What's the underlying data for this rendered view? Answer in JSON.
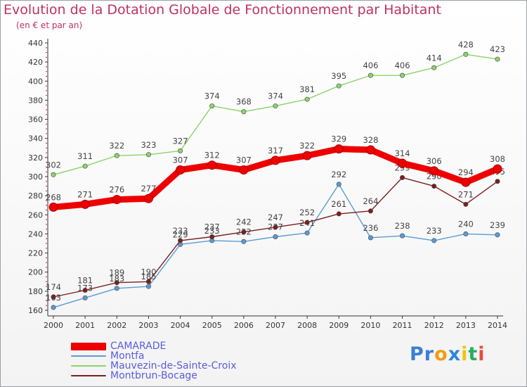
{
  "chart_data": {
    "type": "line",
    "title": "Evolution de la Dotation Globale de Fonctionnement par Habitant",
    "subtitle": "(en € et par an)",
    "xlabel": "",
    "ylabel": "",
    "ylim": [
      160,
      440
    ],
    "yticks": [
      "160",
      "180",
      "200",
      "220",
      "240",
      "260",
      "280",
      "300",
      "320",
      "340",
      "360",
      "380",
      "400",
      "420",
      "440"
    ],
    "categories": [
      "2000",
      "2001",
      "2002",
      "2003",
      "2004",
      "2005",
      "2006",
      "2007",
      "2008",
      "2009",
      "2010",
      "2011",
      "2012",
      "2013",
      "2014"
    ],
    "series": [
      {
        "name": "Montfa",
        "color": "#5b9bd5",
        "values": [
          163,
          173,
          183,
          185,
          229,
          233,
          232,
          237,
          241,
          292,
          236,
          238,
          233,
          240,
          239
        ],
        "labels": [
          "163",
          "173",
          "183",
          "185",
          "229",
          "233",
          "232",
          "237",
          "241",
          "292",
          "236",
          "238",
          "233",
          "240",
          "239"
        ]
      },
      {
        "name": "Mauvezin-de-Sainte-Croix",
        "color": "#8cd36a",
        "values": [
          302,
          311,
          322,
          323,
          327,
          374,
          368,
          374,
          381,
          395,
          406,
          406,
          414,
          428,
          423
        ],
        "labels": [
          "302",
          "311",
          "322",
          "323",
          "327",
          "374",
          "368",
          "374",
          "381",
          "395",
          "406",
          "406",
          "414",
          "428",
          "423"
        ]
      },
      {
        "name": "Montbrun-Bocage",
        "color": "#7a1f1f",
        "values": [
          174,
          181,
          189,
          190,
          233,
          237,
          242,
          247,
          252,
          261,
          264,
          299,
          290,
          271,
          295
        ],
        "labels": [
          "174",
          "181",
          "189",
          "190",
          "233",
          "237",
          "242",
          "247",
          "252",
          "261",
          "264",
          "299",
          "290",
          "271",
          "295"
        ]
      },
      {
        "name": "CAMARADE",
        "color": "#ee0000",
        "values": [
          268,
          271,
          276,
          277,
          307,
          312,
          307,
          317,
          322,
          329,
          328,
          314,
          306,
          294,
          308
        ],
        "labels": [
          "268",
          "271",
          "276",
          "277",
          "307",
          "312",
          "307",
          "317",
          "322",
          "329",
          "328",
          "314",
          "306",
          "294",
          "308"
        ]
      }
    ],
    "legend": [
      "CAMARADE",
      "Montfa",
      "Mauvezin-de-Sainte-Croix",
      "Montbrun-Bocage"
    ],
    "legend_position": "bottom-left",
    "grid": false
  },
  "brand": {
    "letters": [
      "P",
      "r",
      "o",
      "x",
      "i",
      "t",
      "i"
    ],
    "colors": [
      "#3a7fd5",
      "#3a7fd5",
      "#f39c12",
      "#2e86de",
      "#f1c40f",
      "#27ae60",
      "#e74c3c"
    ]
  }
}
